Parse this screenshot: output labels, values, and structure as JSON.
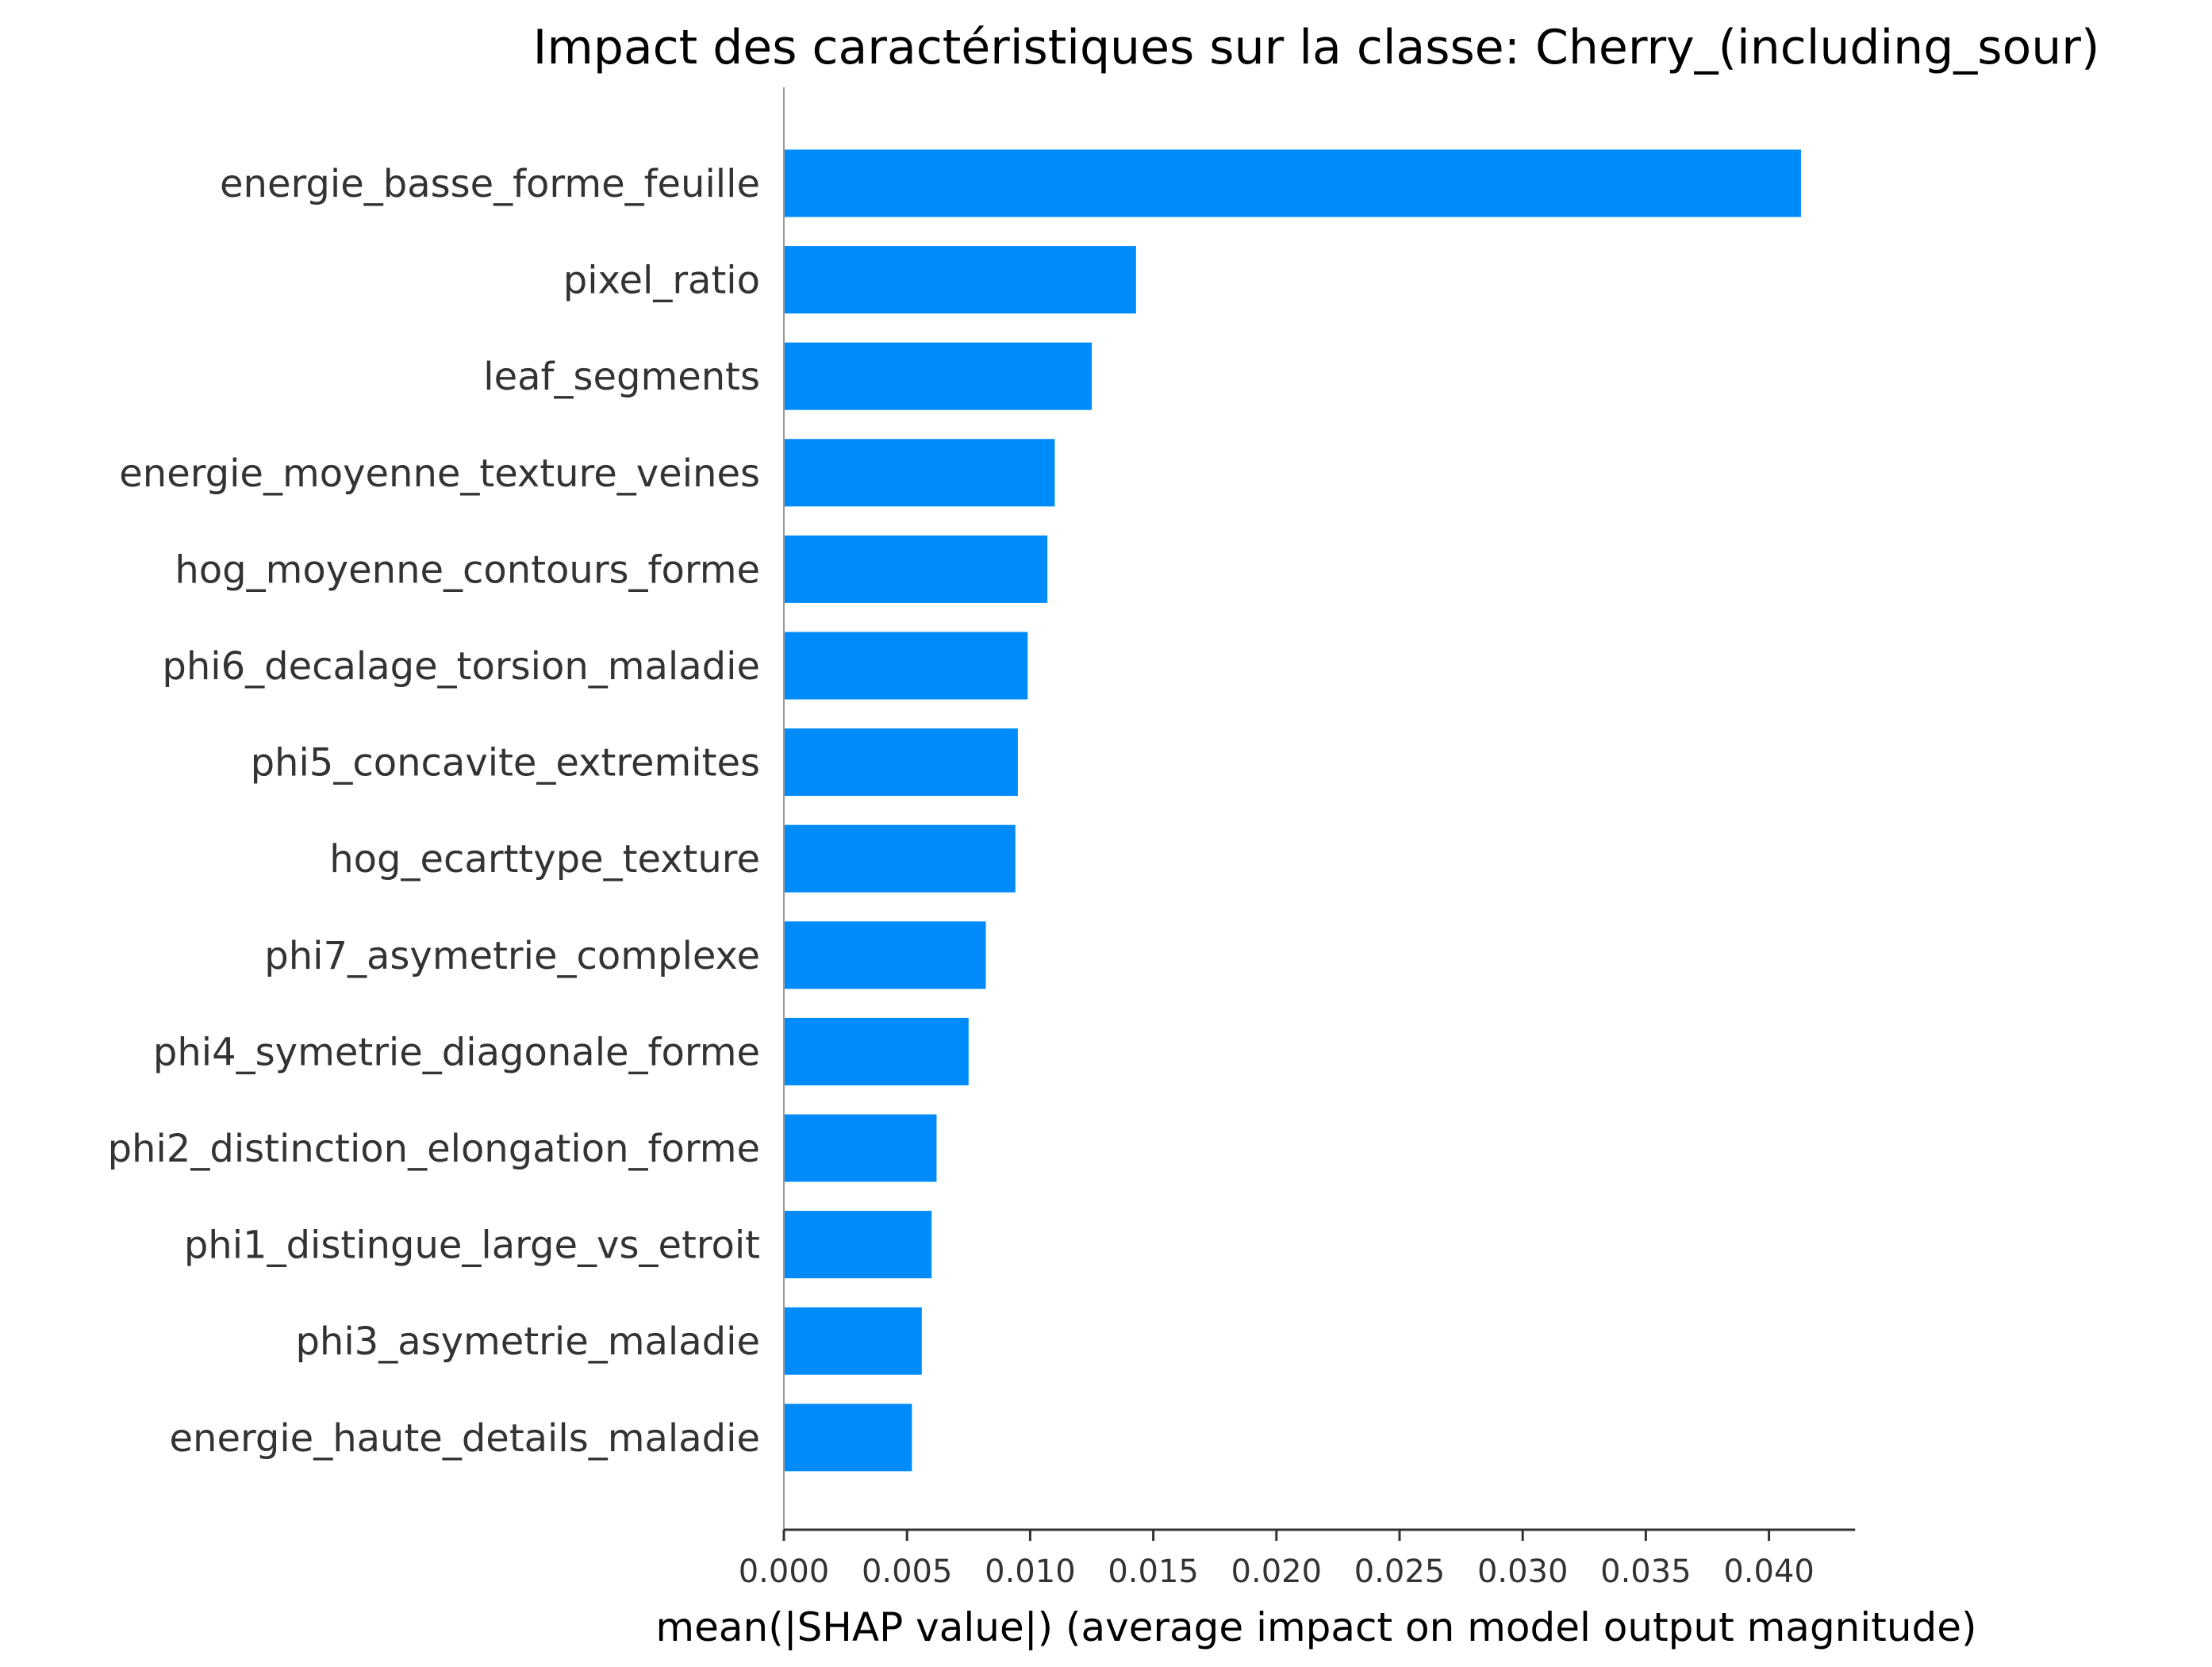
{
  "chart_data": {
    "type": "bar",
    "orientation": "horizontal",
    "title": "Impact des caractéristiques sur la classe: Cherry_(including_sour)",
    "xlabel": "mean(|SHAP value|) (average impact on model output magnitude)",
    "ylabel": "",
    "xlim": [
      0,
      0.0435
    ],
    "xticks": [
      "0.000",
      "0.005",
      "0.010",
      "0.015",
      "0.020",
      "0.025",
      "0.030",
      "0.035",
      "0.040"
    ],
    "grid": false,
    "bar_color": "#008bfb",
    "categories": [
      "energie_basse_forme_feuille",
      "pixel_ratio",
      "leaf_segments",
      "energie_moyenne_texture_veines",
      "hog_moyenne_contours_forme",
      "phi6_decalage_torsion_maladie",
      "phi5_concavite_extremites",
      "hog_ecarttype_texture",
      "phi7_asymetrie_complexe",
      "phi4_symetrie_diagonale_forme",
      "phi2_distinction_elongation_forme",
      "phi1_distingue_large_vs_etroit",
      "phi3_asymetrie_maladie",
      "energie_haute_details_maladie"
    ],
    "values": [
      0.0413,
      0.0143,
      0.0125,
      0.011,
      0.0107,
      0.0099,
      0.0095,
      0.0094,
      0.0082,
      0.0075,
      0.0062,
      0.006,
      0.0056,
      0.0052
    ]
  }
}
